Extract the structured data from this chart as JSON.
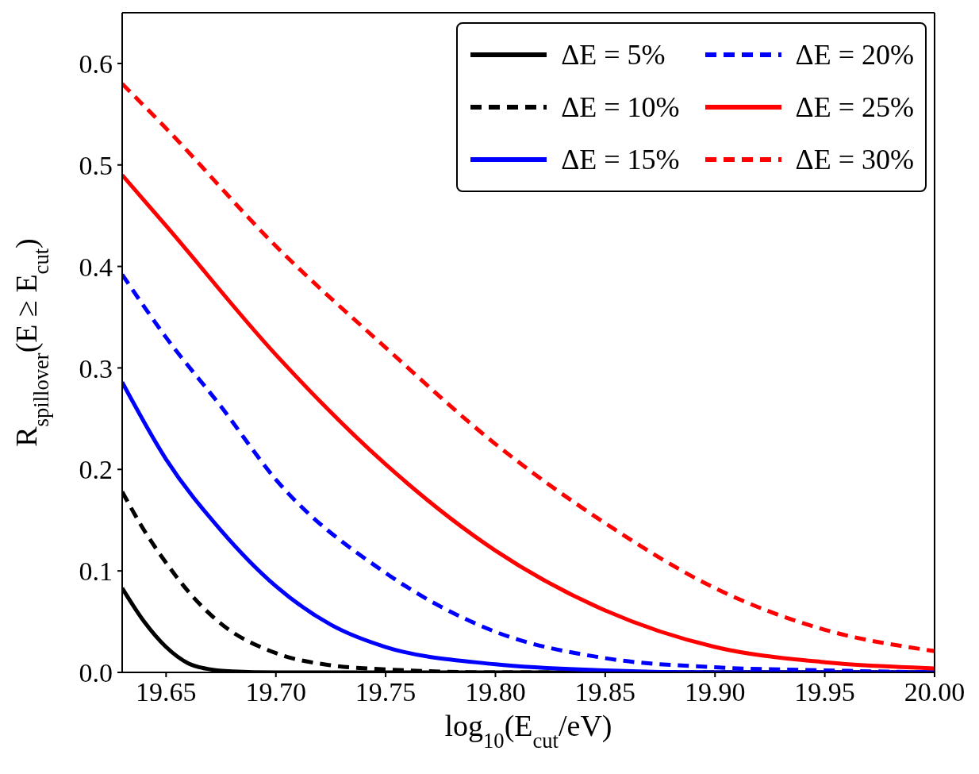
{
  "chart_data": {
    "type": "line",
    "xlabel": "log$_{10}$(E$_{cut}$/eV)",
    "ylabel": "R$_{spillover}$(E ≥ E$_{cut}$)",
    "xlim": [
      19.63,
      20.0
    ],
    "xticks": [
      19.65,
      {
        "value": 19.7,
        "label": "19.70"
      },
      19.75,
      {
        "value": 19.8,
        "label": "19.80"
      },
      19.85,
      {
        "value": 19.9,
        "label": "19.90"
      },
      19.95,
      {
        "value": 20.0,
        "label": "20.00"
      }
    ],
    "ylim": [
      0,
      0.65
    ],
    "yticks": [
      {
        "value": 0,
        "label": "0.0"
      },
      0.1,
      0.2,
      0.3,
      0.4,
      0.5,
      0.6
    ],
    "legend": "top right",
    "marker": "none",
    "series": [
      {
        "name": "ΔE = 5%",
        "color": "#000000",
        "line_style": "solid",
        "x": [
          19.63,
          19.64,
          19.65,
          19.66,
          19.67,
          19.68,
          19.7,
          20.0
        ],
        "values": [
          0.083,
          0.05,
          0.025,
          0.009,
          0.003,
          0.001,
          0,
          0
        ]
      },
      {
        "name": "ΔE = 10%",
        "color": "#000000",
        "line_style": "dashed",
        "x": [
          19.63,
          19.64,
          19.65,
          19.66,
          19.675,
          19.7,
          19.725,
          19.75,
          19.8,
          20.0
        ],
        "values": [
          0.178,
          0.14,
          0.108,
          0.08,
          0.048,
          0.019,
          0.007,
          0.003,
          0,
          0
        ]
      },
      {
        "name": "ΔE = 15%",
        "color": "#0000ff",
        "line_style": "solid",
        "x": [
          19.63,
          19.65,
          19.675,
          19.7,
          19.725,
          19.75,
          19.8,
          19.85,
          19.9,
          20.0
        ],
        "values": [
          0.286,
          0.21,
          0.14,
          0.085,
          0.047,
          0.025,
          0.008,
          0.002,
          0,
          0
        ]
      },
      {
        "name": "ΔE = 20%",
        "color": "#0000ff",
        "line_style": "dashed",
        "x": [
          19.63,
          19.65,
          19.675,
          19.7,
          19.75,
          19.8,
          19.85,
          19.9,
          19.95,
          20.0
        ],
        "values": [
          0.392,
          0.33,
          0.262,
          0.19,
          0.098,
          0.04,
          0.014,
          0.005,
          0.002,
          0
        ]
      },
      {
        "name": "ΔE = 25%",
        "color": "#ff0000",
        "line_style": "solid",
        "x": [
          19.63,
          19.65,
          19.7,
          19.75,
          19.8,
          19.85,
          19.9,
          19.95,
          20.0
        ],
        "values": [
          0.49,
          0.44,
          0.313,
          0.205,
          0.12,
          0.061,
          0.025,
          0.01,
          0.004
        ]
      },
      {
        "name": "ΔE = 30%",
        "color": "#ff0000",
        "line_style": "dashed",
        "x": [
          19.63,
          19.65,
          19.7,
          19.75,
          19.8,
          19.85,
          19.9,
          19.95,
          20.0
        ],
        "values": [
          0.58,
          0.536,
          0.42,
          0.32,
          0.225,
          0.147,
          0.083,
          0.042,
          0.021
        ]
      }
    ]
  }
}
